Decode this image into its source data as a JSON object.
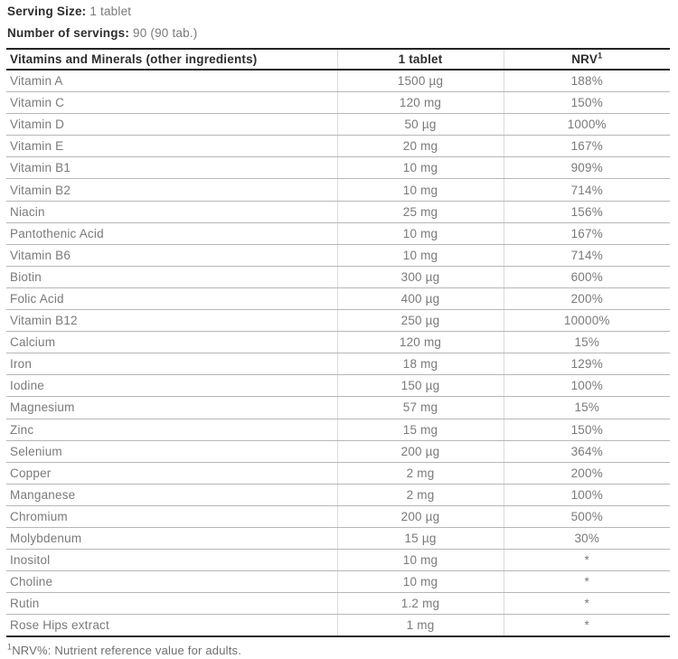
{
  "meta": {
    "serving_size_label": "Serving Size:",
    "serving_size_value": "1 tablet",
    "servings_label": "Number of servings:",
    "servings_value": "90 (90 tab.)"
  },
  "table": {
    "header": {
      "ingredients": "Vitamins and Minerals (other ingredients)",
      "amount": "1 tablet",
      "nrv_label": "NRV",
      "nrv_superscript": "1"
    },
    "rows": [
      {
        "name": "Vitamin A",
        "amount": "1500 µg",
        "nrv": "188%"
      },
      {
        "name": "Vitamin C",
        "amount": "120 mg",
        "nrv": "150%"
      },
      {
        "name": "Vitamin D",
        "amount": "50 µg",
        "nrv": "1000%"
      },
      {
        "name": "Vitamin E",
        "amount": "20 mg",
        "nrv": "167%"
      },
      {
        "name": "Vitamin B1",
        "amount": "10 mg",
        "nrv": "909%"
      },
      {
        "name": "Vitamin B2",
        "amount": "10 mg",
        "nrv": "714%"
      },
      {
        "name": "Niacin",
        "amount": "25 mg",
        "nrv": "156%"
      },
      {
        "name": "Pantothenic Acid",
        "amount": "10 mg",
        "nrv": "167%"
      },
      {
        "name": "Vitamin B6",
        "amount": "10 mg",
        "nrv": "714%"
      },
      {
        "name": "Biotin",
        "amount": "300 µg",
        "nrv": "600%"
      },
      {
        "name": "Folic Acid",
        "amount": "400 µg",
        "nrv": "200%"
      },
      {
        "name": "Vitamin B12",
        "amount": "250 µg",
        "nrv": "10000%"
      },
      {
        "name": "Calcium",
        "amount": "120 mg",
        "nrv": "15%"
      },
      {
        "name": "Iron",
        "amount": "18 mg",
        "nrv": "129%"
      },
      {
        "name": "Iodine",
        "amount": "150 µg",
        "nrv": "100%"
      },
      {
        "name": "Magnesium",
        "amount": "57 mg",
        "nrv": "15%"
      },
      {
        "name": "Zinc",
        "amount": "15 mg",
        "nrv": "150%"
      },
      {
        "name": "Selenium",
        "amount": "200 µg",
        "nrv": "364%"
      },
      {
        "name": "Copper",
        "amount": "2 mg",
        "nrv": "200%"
      },
      {
        "name": "Manganese",
        "amount": "2 mg",
        "nrv": "100%"
      },
      {
        "name": "Chromium",
        "amount": "200 µg",
        "nrv": "500%"
      },
      {
        "name": "Molybdenum",
        "amount": "15 µg",
        "nrv": "30%"
      },
      {
        "name": "Inositol",
        "amount": "10 mg",
        "nrv": "*"
      },
      {
        "name": "Choline",
        "amount": "10 mg",
        "nrv": "*"
      },
      {
        "name": "Rutin",
        "amount": "1.2 mg",
        "nrv": "*"
      },
      {
        "name": "Rose Hips extract",
        "amount": "1 mg",
        "nrv": "*"
      }
    ]
  },
  "footnote": {
    "superscript": "1",
    "text": "NRV%: Nutrient reference value for adults."
  },
  "colors": {
    "heading_text": "#2d2d2d",
    "body_text": "#7a7a7a",
    "thick_rule": "#232323",
    "row_rule": "#b7b7b7",
    "column_rule": "#dcdcdc"
  }
}
